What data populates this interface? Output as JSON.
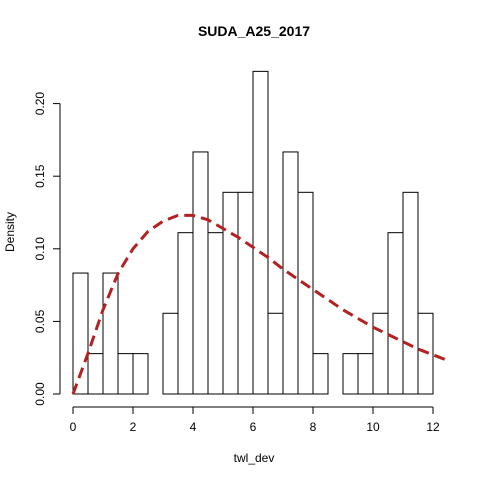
{
  "chart_data": {
    "type": "bar",
    "subtype": "histogram-with-density-curve",
    "title": "SUDA_A25_2017",
    "xlabel": "twl_dev",
    "ylabel": "Density",
    "xlim": [
      0,
      12.5
    ],
    "ylim": [
      0,
      0.22
    ],
    "x_ticks": [
      "0",
      "2",
      "4",
      "6",
      "8",
      "10",
      "12"
    ],
    "y_ticks": [
      "0.00",
      "0.05",
      "0.10",
      "0.15",
      "0.20"
    ],
    "bin_width": 0.5,
    "bin_edges": [
      0,
      0.5,
      1,
      1.5,
      2,
      2.5,
      3,
      3.5,
      4,
      4.5,
      5,
      5.5,
      6,
      6.5,
      7,
      7.5,
      8,
      8.5,
      9,
      9.5,
      10,
      10.5,
      11,
      11.5,
      12
    ],
    "values": [
      0.0833,
      0.0278,
      0.0833,
      0.0278,
      0.0278,
      0,
      0.0556,
      0.1111,
      0.1667,
      0.1111,
      0.1389,
      0.1389,
      0.2222,
      0.0556,
      0.1667,
      0.1389,
      0.0278,
      0,
      0.0278,
      0.0278,
      0.0556,
      0.1111,
      0.1389,
      0.0556
    ],
    "grid": false,
    "curve": {
      "style": "dashed",
      "color": "#b22222",
      "x": [
        0,
        0.5,
        1,
        1.5,
        2,
        2.5,
        3,
        3.5,
        4,
        4.5,
        5,
        5.5,
        6,
        6.5,
        7,
        7.5,
        8,
        8.5,
        9,
        9.5,
        10,
        10.5,
        11,
        11.5,
        12,
        12.5
      ],
      "y": [
        0,
        0.028,
        0.058,
        0.083,
        0.1,
        0.112,
        0.119,
        0.123,
        0.123,
        0.12,
        0.114,
        0.108,
        0.101,
        0.094,
        0.086,
        0.079,
        0.072,
        0.065,
        0.058,
        0.052,
        0.046,
        0.041,
        0.036,
        0.031,
        0.027,
        0.023
      ]
    },
    "bar_fill": "#ffffff",
    "bar_stroke": "#000000"
  }
}
